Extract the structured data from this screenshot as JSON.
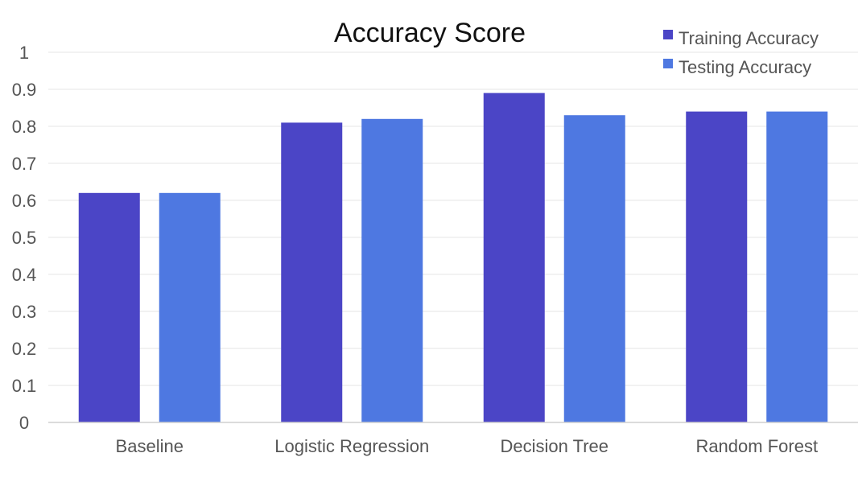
{
  "chart_data": {
    "type": "bar",
    "title": "Accuracy Score",
    "xlabel": "",
    "ylabel": "",
    "categories": [
      "Baseline",
      "Logistic Regression",
      "Decision Tree",
      "Random Forest"
    ],
    "series": [
      {
        "name": "Training Accuracy",
        "values": [
          0.62,
          0.81,
          0.89,
          0.84
        ],
        "color": "#4B45C6"
      },
      {
        "name": "Testing Accuracy",
        "values": [
          0.62,
          0.82,
          0.83,
          0.84
        ],
        "color": "#4E78E1"
      }
    ],
    "ylim": [
      0,
      1
    ],
    "yticks": [
      "0",
      "0.1",
      "0.2",
      "0.3",
      "0.4",
      "0.5",
      "0.6",
      "0.7",
      "0.8",
      "0.9",
      "1"
    ],
    "grid": true,
    "legend_position": "top-right"
  }
}
